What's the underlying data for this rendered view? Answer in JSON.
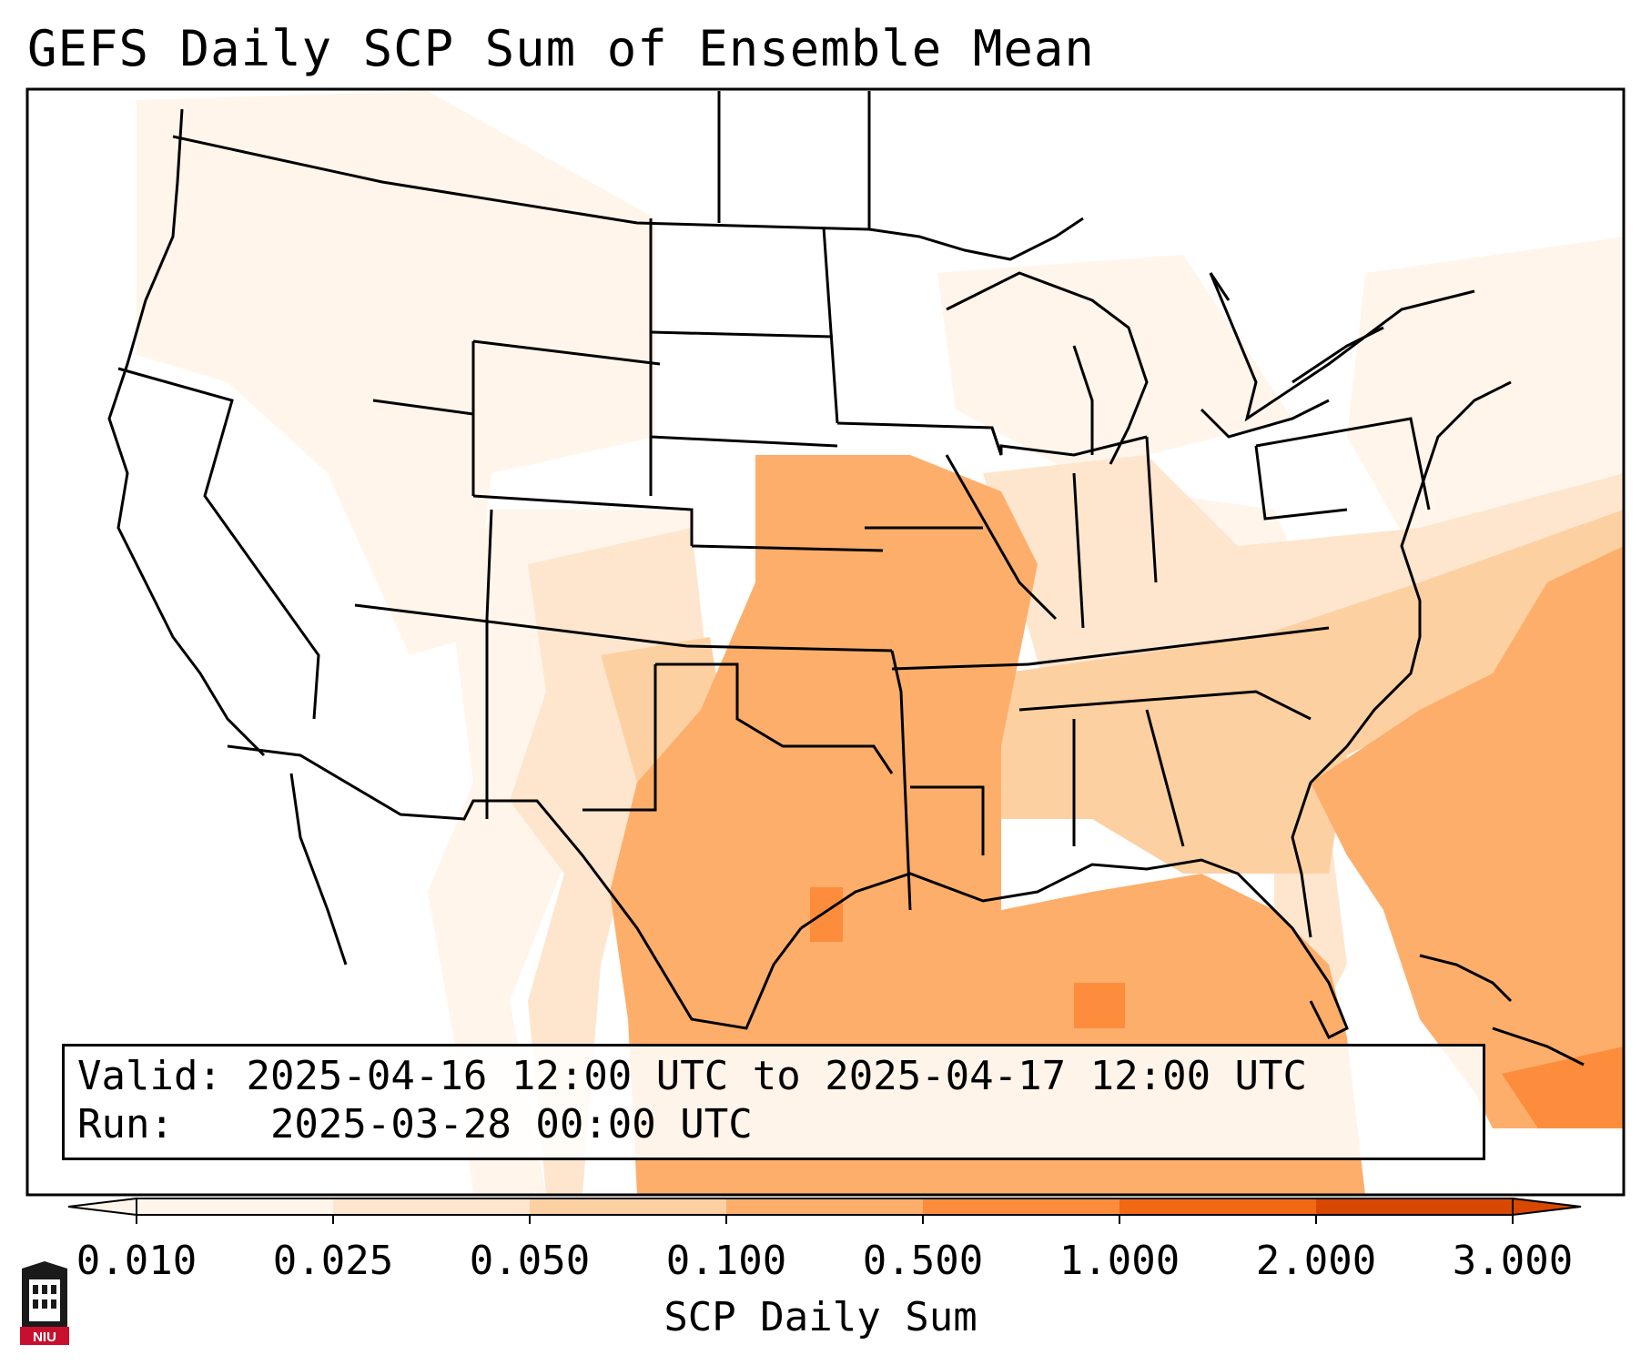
{
  "title": "GEFS Daily SCP Sum of Ensemble Mean",
  "info": {
    "valid_label": "Valid:",
    "valid_value": "2025-04-16 12:00 UTC to 2025-04-17 12:00 UTC",
    "run_label": "Run:",
    "run_value": "2025-03-28 00:00 UTC"
  },
  "colorbar": {
    "label": "SCP Daily Sum",
    "ticks": [
      "0.010",
      "0.025",
      "0.050",
      "0.100",
      "0.500",
      "1.000",
      "2.000",
      "3.000"
    ],
    "colors": [
      "#fff5eb",
      "#fee6ce",
      "#fdd0a2",
      "#fdae6b",
      "#fd8d3c",
      "#f16913",
      "#d94801"
    ],
    "extend": "both"
  },
  "logo": {
    "text": "NIU"
  }
}
